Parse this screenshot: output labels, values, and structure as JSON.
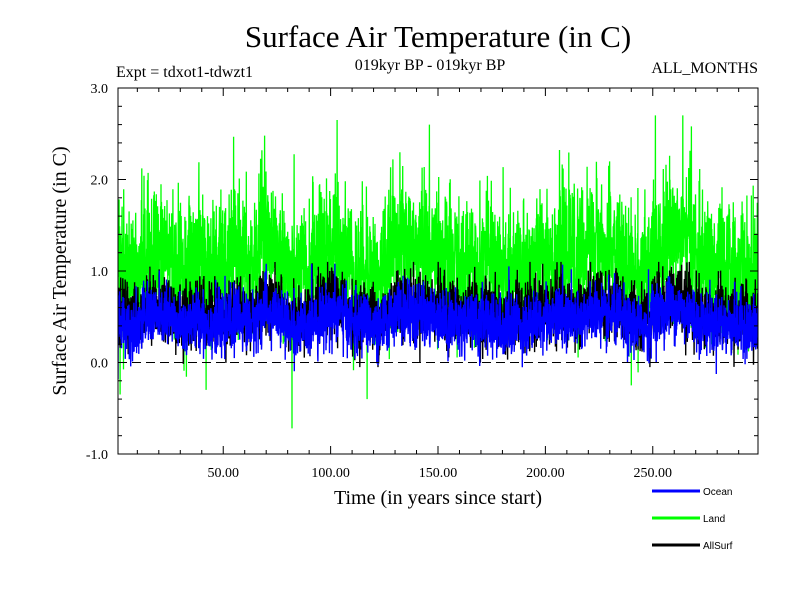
{
  "chart_data": {
    "type": "line",
    "title": "Surface Air Temperature (in C)",
    "subtitle": "019kyr BP - 019kyr BP",
    "left_label": "Expt = tdxot1-tdwzt1",
    "right_label": "ALL_MONTHS",
    "xlabel": "Time (in years since start)",
    "ylabel": "Surface Air Temperature (in C)",
    "xlim": [
      1,
      299
    ],
    "ylim": [
      -1.0,
      3.0
    ],
    "x_ticks": [
      50,
      100,
      150,
      200,
      250
    ],
    "x_tick_labels": [
      "50.00",
      "100.00",
      "150.00",
      "200.00",
      "250.00"
    ],
    "y_ticks": [
      -1.0,
      0.0,
      1.0,
      2.0,
      3.0
    ],
    "y_tick_labels": [
      "-1.0",
      "0.0",
      "1.0",
      "2.0",
      "3.0"
    ],
    "reference_line": {
      "y": 0.0,
      "style": "dashed",
      "color": "#000000"
    },
    "points_per_year": 12,
    "series": [
      {
        "name": "Land",
        "color": "#00ff00",
        "mean": 1.1,
        "std": 0.4,
        "min": -0.72,
        "max": 2.7,
        "extremes": [
          {
            "x": 2,
            "y": -0.35
          },
          {
            "x": 42,
            "y": -0.3
          },
          {
            "x": 68,
            "y": 2.32
          },
          {
            "x": 82,
            "y": -0.72
          },
          {
            "x": 103,
            "y": 2.65
          },
          {
            "x": 117,
            "y": -0.4
          },
          {
            "x": 146,
            "y": 2.6
          },
          {
            "x": 240,
            "y": -0.25
          },
          {
            "x": 264,
            "y": 2.7
          },
          {
            "x": 268,
            "y": 2.58
          }
        ]
      },
      {
        "name": "AllSurf",
        "color": "#000000",
        "mean": 0.55,
        "std": 0.2,
        "min": -0.05,
        "max": 1.1
      },
      {
        "name": "Ocean",
        "color": "#0000ff",
        "mean": 0.45,
        "std": 0.18,
        "min": -0.18,
        "max": 1.08,
        "extremes": [
          {
            "x": 1,
            "y": -0.18
          },
          {
            "x": 70,
            "y": 1.08
          },
          {
            "x": 102,
            "y": 1.08
          },
          {
            "x": 183,
            "y": 1.05
          },
          {
            "x": 208,
            "y": 1.07
          },
          {
            "x": 248,
            "y": 1.02
          }
        ]
      }
    ],
    "legend": [
      {
        "name": "Ocean",
        "color": "#0000ff"
      },
      {
        "name": "Land",
        "color": "#00ff00"
      },
      {
        "name": "AllSurf",
        "color": "#000000"
      }
    ]
  }
}
